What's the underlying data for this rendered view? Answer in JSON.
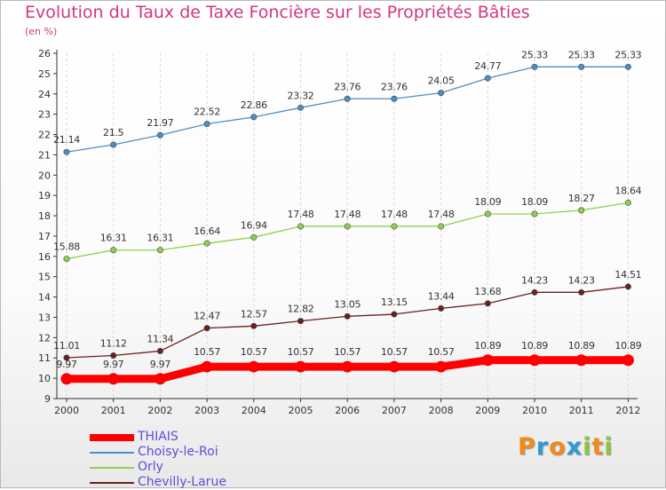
{
  "title": "Evolution du Taux de Taxe Foncière sur les Propriétés Bâties",
  "unit": "(en %)",
  "logo": {
    "text": "Proxiti",
    "letters": [
      {
        "ch": "P",
        "color": "#f08a1a"
      },
      {
        "ch": "r",
        "color": "#2f9ad8"
      },
      {
        "ch": "o",
        "color": "#f08a1a"
      },
      {
        "ch": "x",
        "color": "#2f9ad8"
      },
      {
        "ch": "i",
        "color": "#8cc63f"
      },
      {
        "ch": "t",
        "color": "#f08a1a"
      },
      {
        "ch": "i",
        "color": "#8cc63f"
      }
    ]
  },
  "chart_data": {
    "type": "line",
    "title": "Evolution du Taux de Taxe Foncière sur les Propriétés Bâties",
    "ylabel": "(en %)",
    "xlabel": "",
    "x": [
      "2000",
      "2001",
      "2002",
      "2003",
      "2004",
      "2005",
      "2006",
      "2007",
      "2008",
      "2009",
      "2010",
      "2011",
      "2012"
    ],
    "ylim": [
      9,
      26
    ],
    "yticks": [
      "9",
      "10",
      "11",
      "12",
      "13",
      "14",
      "15",
      "16",
      "17",
      "18",
      "19",
      "20",
      "21",
      "22",
      "23",
      "24",
      "25",
      "26"
    ],
    "grid": "vertical dashed",
    "legend_position": "bottom-left",
    "series": [
      {
        "name": "THIAIS",
        "color": "#ff0000",
        "values": [
          9.97,
          9.97,
          9.97,
          10.57,
          10.57,
          10.57,
          10.57,
          10.57,
          10.57,
          10.89,
          10.89,
          10.89,
          10.89
        ],
        "labels": [
          "9.97",
          "9.97",
          "9.97",
          "10.57",
          "10.57",
          "10.57",
          "10.57",
          "10.57",
          "10.57",
          "10.89",
          "10.89",
          "10.89",
          "10.89"
        ]
      },
      {
        "name": "Choisy-le-Roi",
        "color": "#4a90c8",
        "values": [
          21.14,
          21.5,
          21.97,
          22.52,
          22.86,
          23.32,
          23.76,
          23.76,
          24.05,
          24.77,
          25.33,
          25.33,
          25.33
        ],
        "labels": [
          "21.14",
          "21.5",
          "21.97",
          "22.52",
          "22.86",
          "23.32",
          "23.76",
          "23.76",
          "24.05",
          "24.77",
          "25.33",
          "25.33",
          "25.33"
        ]
      },
      {
        "name": "Orly",
        "color": "#8ed14e",
        "values": [
          15.88,
          16.31,
          16.31,
          16.64,
          16.94,
          17.48,
          17.48,
          17.48,
          17.48,
          18.09,
          18.09,
          18.27,
          18.64
        ],
        "labels": [
          "15.88",
          "16.31",
          "16.31",
          "16.64",
          "16.94",
          "17.48",
          "17.48",
          "17.48",
          "17.48",
          "18.09",
          "18.09",
          "18.27",
          "18.64"
        ]
      },
      {
        "name": "Chevilly-Larue",
        "color": "#6b2020",
        "values": [
          11.01,
          11.12,
          11.34,
          12.47,
          12.57,
          12.82,
          13.05,
          13.15,
          13.44,
          13.68,
          14.23,
          14.23,
          14.51
        ],
        "labels": [
          "11.01",
          "11.12",
          "11.34",
          "12.47",
          "12.57",
          "12.82",
          "13.05",
          "13.15",
          "13.44",
          "13.68",
          "14.23",
          "14.23",
          "14.51"
        ]
      }
    ]
  }
}
